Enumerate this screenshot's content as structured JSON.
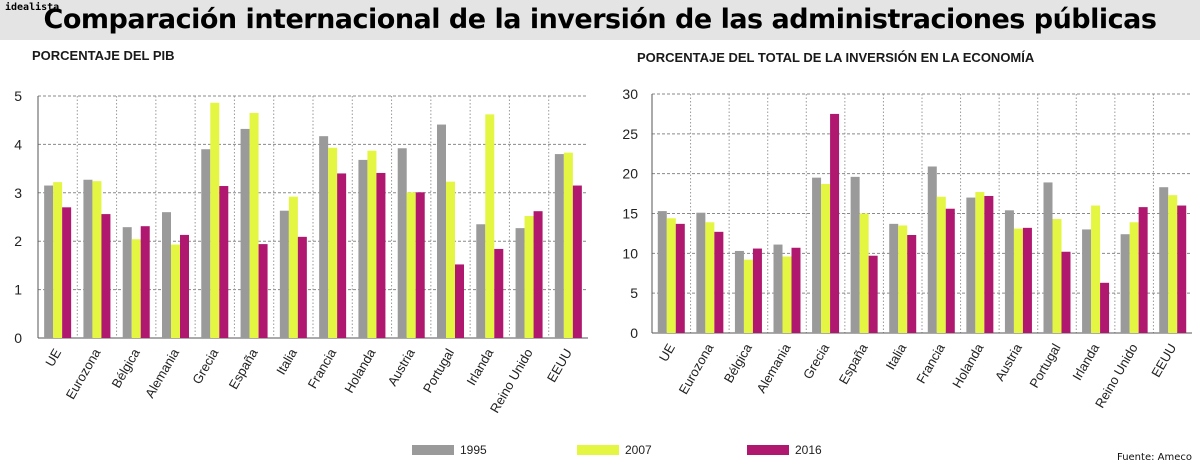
{
  "header": {
    "brand": "idealista",
    "title": "Comparación internacional de la inversión de las administraciones públicas"
  },
  "legend": [
    {
      "label": "1995",
      "color": "#9a9a9a"
    },
    {
      "label": "2007",
      "color": "#e4f542"
    },
    {
      "label": "2016",
      "color": "#b0176f"
    }
  ],
  "source": "Fuente: Ameco",
  "chart_data": [
    {
      "type": "bar",
      "title": "PORCENTAJE DEL PIB",
      "categories": [
        "UE",
        "Eurozona",
        "Bélgica",
        "Alemania",
        "Grecia",
        "España",
        "Italia",
        "Francia",
        "Holanda",
        "Austria",
        "Portugal",
        "Irlanda",
        "Reino Unido",
        "EEUU"
      ],
      "ylim": [
        0,
        5
      ],
      "yticks": [
        0,
        1,
        2,
        3,
        4,
        5
      ],
      "grid": true,
      "series": [
        {
          "name": "1995",
          "color": "#9a9a9a",
          "values": [
            3.15,
            3.27,
            2.29,
            2.6,
            3.9,
            4.32,
            2.63,
            4.17,
            3.68,
            3.92,
            4.41,
            2.35,
            2.27,
            3.8
          ]
        },
        {
          "name": "2007",
          "color": "#e4f542",
          "values": [
            3.22,
            3.24,
            2.04,
            1.93,
            4.86,
            4.65,
            2.92,
            3.93,
            3.87,
            3.01,
            3.23,
            4.62,
            2.52,
            3.83
          ]
        },
        {
          "name": "2016",
          "color": "#b0176f",
          "values": [
            2.7,
            2.56,
            2.31,
            2.13,
            3.14,
            1.94,
            2.09,
            3.4,
            3.41,
            3.01,
            1.52,
            1.84,
            2.62,
            3.15
          ]
        }
      ]
    },
    {
      "type": "bar",
      "title": "PORCENTAJE DEL TOTAL DE LA INVERSIÓN EN LA ECONOMÍA",
      "categories": [
        "UE",
        "Eurozona",
        "Bélgica",
        "Alemania",
        "Grecia",
        "España",
        "Italia",
        "Francia",
        "Holanda",
        "Austria",
        "Portugal",
        "Irlanda",
        "Reino Unido",
        "EEUU"
      ],
      "ylim": [
        0,
        30
      ],
      "yticks": [
        0,
        5,
        10,
        15,
        20,
        25,
        30
      ],
      "grid": true,
      "series": [
        {
          "name": "1995",
          "color": "#9a9a9a",
          "values": [
            15.3,
            15.1,
            10.3,
            11.1,
            19.5,
            19.6,
            13.7,
            20.9,
            17.0,
            15.4,
            18.9,
            13.0,
            12.4,
            18.3
          ]
        },
        {
          "name": "2007",
          "color": "#e4f542",
          "values": [
            14.4,
            13.9,
            9.2,
            9.6,
            18.7,
            15.0,
            13.5,
            17.1,
            17.7,
            13.1,
            14.3,
            16.0,
            13.9,
            17.3
          ]
        },
        {
          "name": "2016",
          "color": "#b0176f",
          "values": [
            13.7,
            12.7,
            10.6,
            10.7,
            27.5,
            9.7,
            12.3,
            15.6,
            17.2,
            13.2,
            10.2,
            6.3,
            15.8,
            16.0
          ]
        }
      ]
    }
  ]
}
